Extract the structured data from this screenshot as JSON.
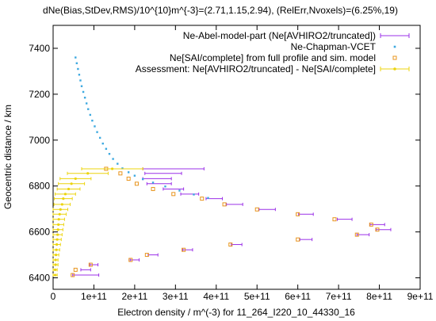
{
  "colors": {
    "model": "#9b30e8",
    "chapman": "#3da9e0",
    "sai": "#e8951e",
    "assessment": "#ecd40e",
    "axis": "#000000"
  },
  "chart_data": {
    "type": "scatter",
    "title": "dNe(Bias,StDev,RMS)/10^{10}m^{-3}=(2.71,1.15,2.94), (RelErr,Nvoxels)=(6.25%,19)",
    "xlabel": "Electron density / m^(-3) for 11_264_I220_10_44330_16",
    "ylabel": "Geocentric distance / km",
    "xlim": [
      0,
      900000000000.0
    ],
    "ylim": [
      6350,
      7500
    ],
    "x_ticks": [
      0,
      100000000000.0,
      200000000000.0,
      300000000000.0,
      400000000000.0,
      500000000000.0,
      600000000000.0,
      700000000000.0,
      800000000000.0,
      900000000000.0
    ],
    "x_tick_labels": [
      "0",
      "1e+11",
      "2e+11",
      "3e+11",
      "4e+11",
      "5e+11",
      "6e+11",
      "7e+11",
      "8e+11",
      "9e+11"
    ],
    "y_ticks": [
      6400,
      6600,
      6800,
      7000,
      7200,
      7400
    ],
    "y_tick_labels": [
      "6400",
      "6600",
      "6800",
      "7000",
      "7200",
      "7400"
    ],
    "legend_position": "top-right",
    "series": [
      {
        "name": "Ne-Abel-model-part (Ne[AVHIRO2/truncated])",
        "marker": "errorbar",
        "points": [
          {
            "x": 295000000000.0,
            "y": 6875,
            "err": 75000000000.0
          },
          {
            "x": 270000000000.0,
            "y": 6855,
            "err": 45000000000.0
          },
          {
            "x": 255000000000.0,
            "y": 6832,
            "err": 35000000000.0
          },
          {
            "x": 260000000000.0,
            "y": 6810,
            "err": 30000000000.0
          },
          {
            "x": 295000000000.0,
            "y": 6787,
            "err": 25000000000.0
          },
          {
            "x": 335000000000.0,
            "y": 6765,
            "err": 22000000000.0
          },
          {
            "x": 395000000000.0,
            "y": 6745,
            "err": 20000000000.0
          },
          {
            "x": 445000000000.0,
            "y": 6720,
            "err": 20000000000.0
          },
          {
            "x": 525000000000.0,
            "y": 6698,
            "err": 20000000000.0
          },
          {
            "x": 620000000000.0,
            "y": 6677,
            "err": 18000000000.0
          },
          {
            "x": 715000000000.0,
            "y": 6655,
            "err": 18000000000.0
          },
          {
            "x": 795000000000.0,
            "y": 6632,
            "err": 18000000000.0
          },
          {
            "x": 810000000000.0,
            "y": 6610,
            "err": 18000000000.0
          },
          {
            "x": 760000000000.0,
            "y": 6588,
            "err": 15000000000.0
          },
          {
            "x": 620000000000.0,
            "y": 6567,
            "err": 15000000000.0
          },
          {
            "x": 450000000000.0,
            "y": 6545,
            "err": 13000000000.0
          },
          {
            "x": 330000000000.0,
            "y": 6522,
            "err": 12000000000.0
          },
          {
            "x": 245000000000.0,
            "y": 6500,
            "err": 12000000000.0
          },
          {
            "x": 200000000000.0,
            "y": 6478,
            "err": 11000000000.0
          },
          {
            "x": 100000000000.0,
            "y": 6457,
            "err": 10000000000.0
          },
          {
            "x": 80000000000.0,
            "y": 6435,
            "err": 12000000000.0
          },
          {
            "x": 80000000000.0,
            "y": 6412,
            "err": 32000000000.0
          }
        ]
      },
      {
        "name": "Ne-Chapman-VCET",
        "marker": "dot",
        "points": [
          {
            "x": 55000000000.0,
            "y": 7360
          },
          {
            "x": 58000000000.0,
            "y": 7335
          },
          {
            "x": 61000000000.0,
            "y": 7310
          },
          {
            "x": 64000000000.0,
            "y": 7285
          },
          {
            "x": 67000000000.0,
            "y": 7260
          },
          {
            "x": 70000000000.0,
            "y": 7235
          },
          {
            "x": 74000000000.0,
            "y": 7210
          },
          {
            "x": 78000000000.0,
            "y": 7185
          },
          {
            "x": 82000000000.0,
            "y": 7160
          },
          {
            "x": 86000000000.0,
            "y": 7135
          },
          {
            "x": 91000000000.0,
            "y": 7110
          },
          {
            "x": 96000000000.0,
            "y": 7085
          },
          {
            "x": 102000000000.0,
            "y": 7060
          },
          {
            "x": 108000000000.0,
            "y": 7035
          },
          {
            "x": 115000000000.0,
            "y": 7010
          },
          {
            "x": 122000000000.0,
            "y": 6985
          },
          {
            "x": 130000000000.0,
            "y": 6962
          },
          {
            "x": 138000000000.0,
            "y": 6940
          },
          {
            "x": 147000000000.0,
            "y": 6918
          },
          {
            "x": 158000000000.0,
            "y": 6897
          },
          {
            "x": 170000000000.0,
            "y": 6877
          },
          {
            "x": 185000000000.0,
            "y": 6860
          },
          {
            "x": 200000000000.0,
            "y": 6845
          },
          {
            "x": 220000000000.0,
            "y": 6830
          },
          {
            "x": 245000000000.0,
            "y": 6815
          },
          {
            "x": 275000000000.0,
            "y": 6798
          },
          {
            "x": 310000000000.0,
            "y": 6780
          },
          {
            "x": 345000000000.0,
            "y": 6763
          },
          {
            "x": 380000000000.0,
            "y": 6748
          }
        ]
      },
      {
        "name": "Ne[SAI/complete] from full profile and sim. model",
        "marker": "square",
        "points": [
          {
            "x": 130000000000.0,
            "y": 6875
          },
          {
            "x": 165000000000.0,
            "y": 6855
          },
          {
            "x": 185000000000.0,
            "y": 6832
          },
          {
            "x": 205000000000.0,
            "y": 6810
          },
          {
            "x": 245000000000.0,
            "y": 6787
          },
          {
            "x": 295000000000.0,
            "y": 6765
          },
          {
            "x": 365000000000.0,
            "y": 6745
          },
          {
            "x": 420000000000.0,
            "y": 6720
          },
          {
            "x": 500000000000.0,
            "y": 6698
          },
          {
            "x": 600000000000.0,
            "y": 6677
          },
          {
            "x": 690000000000.0,
            "y": 6655
          },
          {
            "x": 780000000000.0,
            "y": 6632
          },
          {
            "x": 795000000000.0,
            "y": 6610
          },
          {
            "x": 745000000000.0,
            "y": 6588
          },
          {
            "x": 600000000000.0,
            "y": 6567
          },
          {
            "x": 435000000000.0,
            "y": 6545
          },
          {
            "x": 320000000000.0,
            "y": 6522
          },
          {
            "x": 230000000000.0,
            "y": 6500
          },
          {
            "x": 190000000000.0,
            "y": 6478
          },
          {
            "x": 92000000000.0,
            "y": 6457
          },
          {
            "x": 55000000000.0,
            "y": 6435
          },
          {
            "x": 48000000000.0,
            "y": 6412
          }
        ]
      },
      {
        "name": "Assessment: Ne[AVHIRO2/truncated] - Ne[SAI/complete]",
        "marker": "errorbar-dot",
        "points": [
          {
            "x": 145000000000.0,
            "y": 6875,
            "err": 75000000000.0
          },
          {
            "x": 85000000000.0,
            "y": 6855,
            "err": 50000000000.0
          },
          {
            "x": 55000000000.0,
            "y": 6832,
            "err": 38000000000.0
          },
          {
            "x": 45000000000.0,
            "y": 6810,
            "err": 32000000000.0
          },
          {
            "x": 38000000000.0,
            "y": 6787,
            "err": 28000000000.0
          },
          {
            "x": 30000000000.0,
            "y": 6765,
            "err": 25000000000.0
          },
          {
            "x": 25000000000.0,
            "y": 6745,
            "err": 22000000000.0
          },
          {
            "x": 22000000000.0,
            "y": 6720,
            "err": 20000000000.0
          },
          {
            "x": 18000000000.0,
            "y": 6698,
            "err": 18000000000.0
          },
          {
            "x": 16000000000.0,
            "y": 6677,
            "err": 16000000000.0
          },
          {
            "x": 14000000000.0,
            "y": 6655,
            "err": 14000000000.0
          },
          {
            "x": 13000000000.0,
            "y": 6632,
            "err": 13000000000.0
          },
          {
            "x": 12000000000.0,
            "y": 6610,
            "err": 12000000000.0
          },
          {
            "x": 11000000000.0,
            "y": 6588,
            "err": 11000000000.0
          },
          {
            "x": 10000000000.0,
            "y": 6567,
            "err": 10000000000.0
          },
          {
            "x": 9000000000.0,
            "y": 6545,
            "err": 9000000000.0
          },
          {
            "x": 8000000000.0,
            "y": 6522,
            "err": 8000000000.0
          },
          {
            "x": 7000000000.0,
            "y": 6500,
            "err": 7000000000.0
          },
          {
            "x": 6000000000.0,
            "y": 6478,
            "err": 6000000000.0
          },
          {
            "x": 6000000000.0,
            "y": 6457,
            "err": 6000000000.0
          },
          {
            "x": 5000000000.0,
            "y": 6435,
            "err": 5000000000.0
          },
          {
            "x": 5000000000.0,
            "y": 6412,
            "err": 5000000000.0
          }
        ]
      }
    ]
  }
}
